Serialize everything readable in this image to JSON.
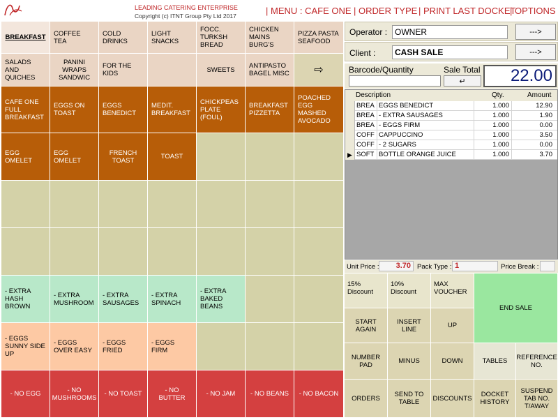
{
  "header": {
    "brand_title": "LEADING CATERING ENTERPRISE",
    "brand_copyright": "Copyright (c) ITNT Group Pty Ltd 2017",
    "nav": [
      {
        "label": "MENU : CAFE ONE"
      },
      {
        "label": "ORDER TYPE"
      },
      {
        "label": "PRINT LAST DOCKET"
      },
      {
        "label": "OPTIONS"
      }
    ],
    "separator": "|"
  },
  "categories": [
    {
      "label": "BREAKFAST"
    },
    {
      "label": "COFFEE TEA"
    },
    {
      "label": "COLD DRINKS"
    },
    {
      "label": "LIGHT SNACKS"
    },
    {
      "label": "FOCC. TURKSH BREAD"
    },
    {
      "label": "CHICKEN MAINS BURG'S"
    },
    {
      "label": "PIZZA PASTA SEAFOOD"
    },
    {
      "label": "SALADS AND QUICHES"
    },
    {
      "label": "PANINI WRAPS SANDWIC"
    },
    {
      "label": "FOR THE KIDS"
    },
    {
      "label": ""
    },
    {
      "label": "SWEETS"
    },
    {
      "label": "ANTIPASTO BAGEL MISC"
    },
    {
      "label": "⇨"
    }
  ],
  "items": [
    {
      "label": "CAFE ONE FULL BREAKFAST"
    },
    {
      "label": "EGGS ON TOAST"
    },
    {
      "label": "EGGS BENEDICT"
    },
    {
      "label": "MEDIT. BREAKFAST"
    },
    {
      "label": "CHICKPEAS PLATE (FOUL)"
    },
    {
      "label": "BREAKFAST PIZZETTA"
    },
    {
      "label": "POACHED EGG MASHED AVOCADO"
    },
    {
      "label": "EGG OMELET"
    },
    {
      "label": "EGG OMELET"
    },
    {
      "label": "FRENCH TOAST"
    },
    {
      "label": "TOAST"
    }
  ],
  "extras": [
    {
      "label": "- EXTRA HASH BROWN"
    },
    {
      "label": "- EXTRA MUSHROOM"
    },
    {
      "label": "- EXTRA SAUSAGES"
    },
    {
      "label": "- EXTRA SPINACH"
    },
    {
      "label": "- EXTRA BAKED BEANS"
    }
  ],
  "egg_styles": [
    {
      "label": "- EGGS SUNNY SIDE UP"
    },
    {
      "label": "- EGGS OVER EASY"
    },
    {
      "label": "- EGGS FRIED"
    },
    {
      "label": "- EGGS FIRM"
    }
  ],
  "removals": [
    {
      "label": "- NO EGG"
    },
    {
      "label": "- NO MUSHROOMS"
    },
    {
      "label": "- NO TOAST"
    },
    {
      "label": "- NO BUTTER"
    },
    {
      "label": "- NO JAM"
    },
    {
      "label": "- NO BEANS"
    },
    {
      "label": "- NO BACON"
    }
  ],
  "operator": {
    "label": "Operator :",
    "value": "OWNER",
    "go": "--->"
  },
  "client": {
    "label": "Client :",
    "value": "CASH SALE",
    "go": "--->"
  },
  "barcode": {
    "label": "Barcode/Quantity",
    "value": ""
  },
  "sale_total": {
    "label": "Sale Total",
    "enter": "↵",
    "value": "22.00"
  },
  "order_table": {
    "columns": [
      "Description",
      "Qty.",
      "Amount"
    ],
    "rows": [
      {
        "code": "BREA",
        "desc": "EGGS BENEDICT",
        "qty": "1.000",
        "amount": "12.90",
        "marker": ""
      },
      {
        "code": "BREA",
        "desc": "- EXTRA SAUSAGES",
        "qty": "1.000",
        "amount": "1.90",
        "marker": ""
      },
      {
        "code": "BREA",
        "desc": "- EGGS FIRM",
        "qty": "1.000",
        "amount": "0.00",
        "marker": ""
      },
      {
        "code": "COFF",
        "desc": "CAPPUCCINO",
        "qty": "1.000",
        "amount": "3.50",
        "marker": ""
      },
      {
        "code": "COFF",
        "desc": "- 2 SUGARS",
        "qty": "1.000",
        "amount": "0.00",
        "marker": ""
      },
      {
        "code": "SOFT",
        "desc": "BOTTLE ORANGE JUICE",
        "qty": "1.000",
        "amount": "3.70",
        "marker": "▶"
      }
    ]
  },
  "price_bar": {
    "unit_price_label": "Unit Price :",
    "unit_price": "3.70",
    "pack_type_label": "Pack Type :",
    "pack_type": "1",
    "price_break_label": "Price Break :",
    "price_break": ""
  },
  "actions": {
    "discount15": "15% Discount",
    "discount10": "10% Discount",
    "max_voucher": "MAX VOUCHER",
    "end_sale": "END SALE",
    "start_again": "START AGAIN",
    "insert_line": "INSERT LINE",
    "up": "UP",
    "number_pad": "NUMBER PAD",
    "minus": "MINUS",
    "down": "DOWN",
    "tables": "TABLES",
    "reference": "REFERENCE NO.",
    "orders": "ORDERS",
    "send_to_table": "SEND TO TABLE",
    "discounts": "DISCOUNTS",
    "docket_history": "DOCKET HISTORY",
    "suspend": "SUSPEND TAB No. T/AWAY"
  }
}
